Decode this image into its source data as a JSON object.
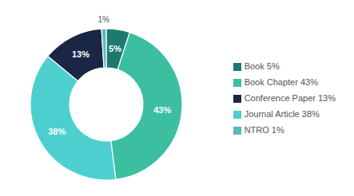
{
  "chart_data": {
    "type": "pie",
    "categories": [
      "Book 5%",
      "Book Chapter 43%",
      "Journal Article 38%",
      "Conference Paper 13%",
      "NTRO 1%"
    ],
    "values": [
      5,
      43,
      38,
      13,
      1
    ],
    "value_labels": [
      "5%",
      "43%",
      "38%",
      "13%",
      "1%"
    ],
    "colors": [
      "#1e7a6e",
      "#3bbfa0",
      "#4dcfcf",
      "#1a2744",
      "#5bb8c4"
    ],
    "data_labels": true,
    "legend": "right"
  }
}
